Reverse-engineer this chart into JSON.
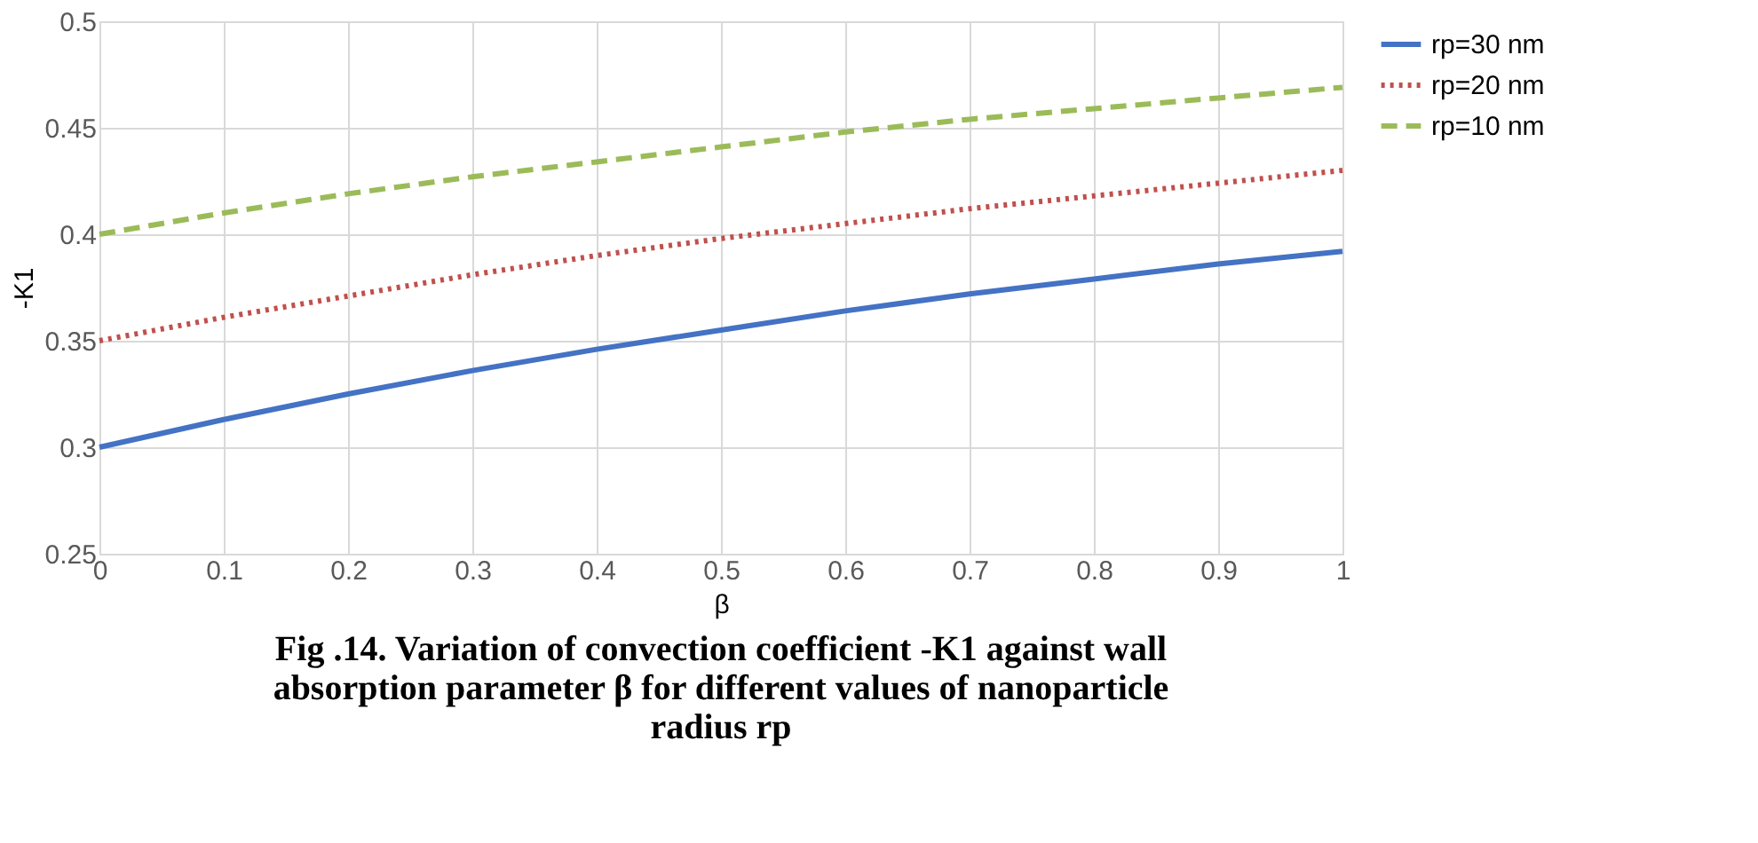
{
  "chart_data": {
    "type": "line",
    "xlabel": "β",
    "ylabel": "-K1",
    "x": [
      0,
      0.1,
      0.2,
      0.3,
      0.4,
      0.5,
      0.6,
      0.7,
      0.8,
      0.9,
      1
    ],
    "series": [
      {
        "name": "rp=30 nm",
        "color": "#4472c4",
        "line_style": "solid",
        "values": [
          0.3,
          0.313,
          0.325,
          0.336,
          0.346,
          0.355,
          0.364,
          0.372,
          0.379,
          0.386,
          0.392
        ]
      },
      {
        "name": "rp=20 nm",
        "color": "#c0504d",
        "line_style": "dotted",
        "values": [
          0.35,
          0.361,
          0.371,
          0.381,
          0.39,
          0.398,
          0.405,
          0.412,
          0.418,
          0.424,
          0.43
        ]
      },
      {
        "name": "rp=10 nm",
        "color": "#9bbb59",
        "line_style": "dashed",
        "values": [
          0.4,
          0.41,
          0.419,
          0.427,
          0.434,
          0.441,
          0.448,
          0.454,
          0.459,
          0.464,
          0.469
        ]
      }
    ],
    "xlim": [
      0,
      1
    ],
    "xticks": [
      0,
      0.1,
      0.2,
      0.3,
      0.4,
      0.5,
      0.6,
      0.7,
      0.8,
      0.9,
      1
    ],
    "ylim": [
      0.25,
      0.5
    ],
    "yticks": [
      0.25,
      0.3,
      0.35,
      0.4,
      0.45,
      0.5
    ],
    "grid": true,
    "legend": "top right",
    "marker": "none",
    "annotations": [
      "Fig .14. Variation of convection coefficient -K1 against wall absorption parameter β for different values of nanoparticle radius rp"
    ]
  }
}
